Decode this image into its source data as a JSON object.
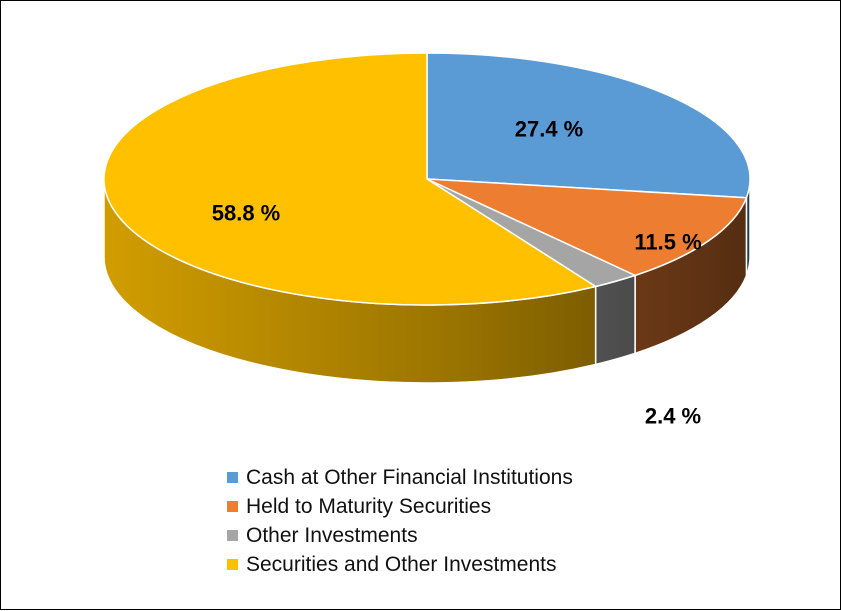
{
  "chart_data": {
    "type": "pie",
    "style": "3d",
    "labels": [
      "Cash at Other Financial Institutions",
      "Held to Maturity Securities",
      "Other Investments",
      "Securities and Other Investments"
    ],
    "values": [
      27.4,
      11.5,
      2.4,
      58.8
    ],
    "data_labels": [
      "27.4 %",
      "11.5 %",
      "2.4 %",
      "58.8 %"
    ],
    "colors": [
      "#5B9BD5",
      "#ED7D31",
      "#A5A5A5",
      "#FFC000"
    ],
    "legend_position": "bottom"
  },
  "legend": {
    "items": [
      {
        "label": "Cash at Other Financial Institutions",
        "color": "#5B9BD5"
      },
      {
        "label": "Held to Maturity Securities",
        "color": "#ED7D31"
      },
      {
        "label": "Other Investments",
        "color": "#A5A5A5"
      },
      {
        "label": "Securities and Other Investments",
        "color": "#FFC000"
      }
    ]
  }
}
